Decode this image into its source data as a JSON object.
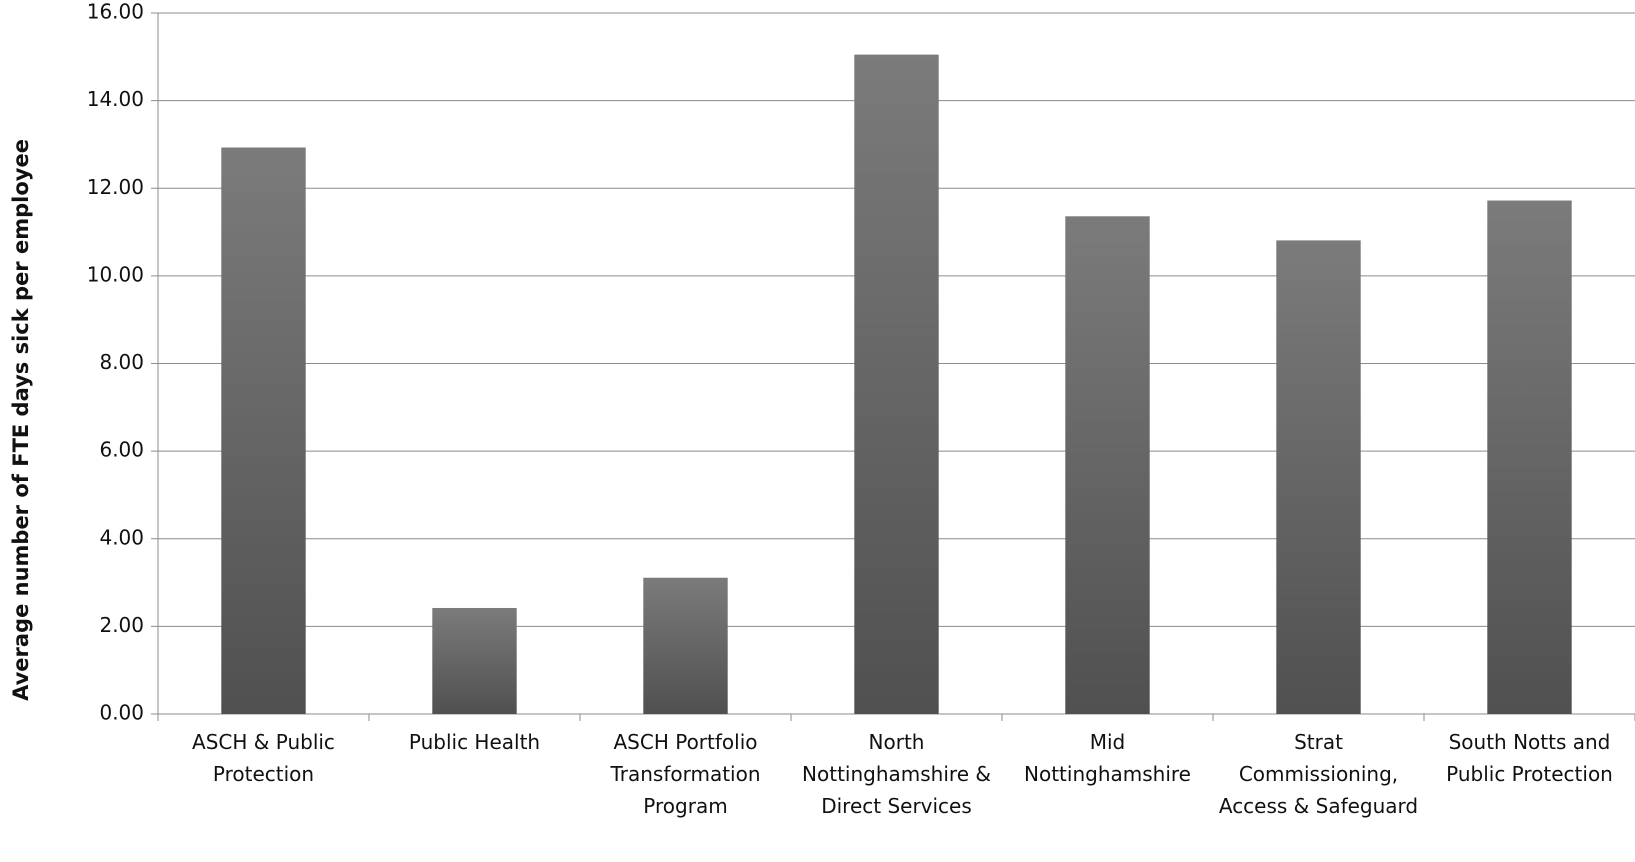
{
  "chart_data": {
    "type": "bar",
    "y_label": "Average number of FTE days sick per employee",
    "categories": [
      "ASCH & Public Protection",
      "Public Health",
      "ASCH Portfolio Transformation Program",
      "North Nottinghamshire & Direct Services",
      "Mid Nottinghamshire",
      "Strat Commissioning, Access & Safeguard",
      "South Notts and Public Protection"
    ],
    "values": [
      12.93,
      2.42,
      3.11,
      15.05,
      11.36,
      10.81,
      11.72
    ],
    "color": "#6a6a6a",
    "ylim": [
      0,
      16
    ],
    "yticks": [
      {
        "value": 0,
        "label": "0.00"
      },
      {
        "value": 2,
        "label": "2.00"
      },
      {
        "value": 4,
        "label": "4.00"
      },
      {
        "value": 6,
        "label": "6.00"
      },
      {
        "value": 8,
        "label": "8.00"
      },
      {
        "value": 10,
        "label": "10.00"
      },
      {
        "value": 12,
        "label": "12.00"
      },
      {
        "value": 14,
        "label": "14.00"
      },
      {
        "value": 16,
        "label": "16.00"
      }
    ],
    "grid": true
  }
}
